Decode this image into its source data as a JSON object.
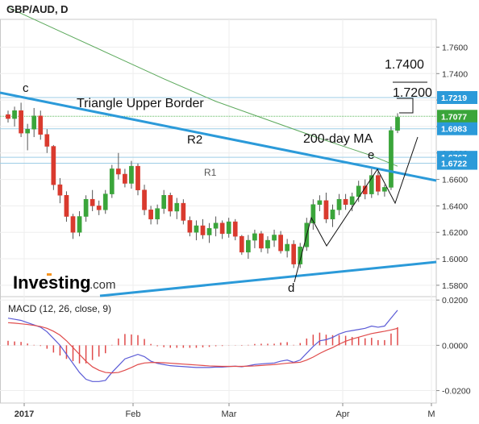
{
  "header": {
    "title": "GBP/AUD, D"
  },
  "brand": {
    "name": "Investing",
    "suffix": ".com",
    "color": "#000000",
    "dot_color": "#f7931e"
  },
  "colors": {
    "up": "#3aa53a",
    "down": "#d93a2e",
    "ma": "#5aa85a",
    "trend": "#2b9ad9",
    "hline": "#9ecde6",
    "hline_green": "#5cb85c",
    "macd": "#5b5bd6",
    "signal": "#e04b4b",
    "hist": "#e04b4b",
    "label_bg": "#2b9ad9",
    "label_bg_green": "#3aa53a"
  },
  "chart_data": [
    {
      "type": "candlestick",
      "title": "GBP/AUD, D",
      "x_tick_labels": [
        "2017",
        "Feb",
        "Mar",
        "Apr",
        "M"
      ],
      "y_tick_labels": [
        "1.7600",
        "1.7400",
        "1.7200",
        "1.7000",
        "1.6800",
        "1.6600",
        "1.6400",
        "1.6200",
        "1.6000",
        "1.5800"
      ],
      "ylim": [
        1.572,
        1.781
      ],
      "price_labels": [
        "1.7219",
        "1.7077",
        "1.6983",
        "1.6767",
        "1.6722"
      ],
      "price_levels": [
        1.7219,
        1.7077,
        1.6983,
        1.6767,
        1.6722
      ],
      "annotations": [
        "c",
        "Triangle Upper Border",
        "R2",
        "200-day MA",
        "R1",
        "e",
        "d",
        "1.7400",
        "1.7200"
      ],
      "series": [
        {
          "name": "Candles",
          "ohlc": [
            [
              1.709,
              1.712,
              1.703,
              1.706
            ],
            [
              1.706,
              1.715,
              1.7,
              1.712
            ],
            [
              1.712,
              1.718,
              1.692,
              1.695
            ],
            [
              1.695,
              1.702,
              1.682,
              1.698
            ],
            [
              1.698,
              1.714,
              1.692,
              1.708
            ],
            [
              1.708,
              1.712,
              1.69,
              1.694
            ],
            [
              1.694,
              1.698,
              1.68,
              1.685
            ],
            [
              1.685,
              1.686,
              1.652,
              1.656
            ],
            [
              1.656,
              1.661,
              1.642,
              1.648
            ],
            [
              1.648,
              1.651,
              1.628,
              1.632
            ],
            [
              1.632,
              1.634,
              1.615,
              1.62
            ],
            [
              1.62,
              1.636,
              1.617,
              1.632
            ],
            [
              1.632,
              1.648,
              1.628,
              1.645
            ],
            [
              1.645,
              1.652,
              1.636,
              1.64
            ],
            [
              1.64,
              1.644,
              1.633,
              1.637
            ],
            [
              1.637,
              1.652,
              1.634,
              1.649
            ],
            [
              1.649,
              1.671,
              1.646,
              1.668
            ],
            [
              1.668,
              1.68,
              1.66,
              1.664
            ],
            [
              1.664,
              1.668,
              1.654,
              1.657
            ],
            [
              1.657,
              1.674,
              1.653,
              1.67
            ],
            [
              1.67,
              1.672,
              1.648,
              1.652
            ],
            [
              1.652,
              1.656,
              1.633,
              1.637
            ],
            [
              1.637,
              1.64,
              1.626,
              1.63
            ],
            [
              1.63,
              1.641,
              1.626,
              1.638
            ],
            [
              1.638,
              1.652,
              1.634,
              1.648
            ],
            [
              1.648,
              1.65,
              1.632,
              1.636
            ],
            [
              1.636,
              1.646,
              1.63,
              1.642
            ],
            [
              1.642,
              1.645,
              1.626,
              1.629
            ],
            [
              1.629,
              1.632,
              1.617,
              1.62
            ],
            [
              1.62,
              1.629,
              1.614,
              1.625
            ],
            [
              1.625,
              1.63,
              1.615,
              1.618
            ],
            [
              1.618,
              1.627,
              1.612,
              1.623
            ],
            [
              1.623,
              1.632,
              1.617,
              1.627
            ],
            [
              1.627,
              1.629,
              1.615,
              1.619
            ],
            [
              1.619,
              1.631,
              1.616,
              1.628
            ],
            [
              1.628,
              1.63,
              1.614,
              1.617
            ],
            [
              1.617,
              1.618,
              1.603,
              1.605
            ],
            [
              1.605,
              1.618,
              1.6,
              1.614
            ],
            [
              1.614,
              1.622,
              1.608,
              1.619
            ],
            [
              1.619,
              1.621,
              1.605,
              1.608
            ],
            [
              1.608,
              1.617,
              1.604,
              1.614
            ],
            [
              1.614,
              1.622,
              1.609,
              1.618
            ],
            [
              1.618,
              1.621,
              1.604,
              1.606
            ],
            [
              1.606,
              1.615,
              1.601,
              1.611
            ],
            [
              1.611,
              1.614,
              1.593,
              1.596
            ],
            [
              1.596,
              1.612,
              1.593,
              1.609
            ],
            [
              1.609,
              1.631,
              1.606,
              1.627
            ],
            [
              1.627,
              1.645,
              1.622,
              1.641
            ],
            [
              1.641,
              1.648,
              1.636,
              1.644
            ],
            [
              1.644,
              1.65,
              1.627,
              1.63
            ],
            [
              1.63,
              1.641,
              1.624,
              1.637
            ],
            [
              1.637,
              1.649,
              1.633,
              1.645
            ],
            [
              1.645,
              1.649,
              1.637,
              1.641
            ],
            [
              1.641,
              1.65,
              1.636,
              1.647
            ],
            [
              1.647,
              1.659,
              1.643,
              1.655
            ],
            [
              1.655,
              1.66,
              1.645,
              1.649
            ],
            [
              1.649,
              1.668,
              1.646,
              1.663
            ],
            [
              1.663,
              1.666,
              1.648,
              1.651
            ],
            [
              1.651,
              1.656,
              1.647,
              1.654
            ],
            [
              1.654,
              1.7,
              1.652,
              1.697
            ],
            [
              1.697,
              1.71,
              1.695,
              1.707
            ]
          ]
        },
        {
          "name": "200-day MA",
          "x": [
            0,
            8,
            16,
            24,
            32,
            40,
            48,
            56,
            60
          ],
          "y": [
            1.79,
            1.772,
            1.754,
            1.736,
            1.719,
            1.705,
            1.691,
            1.678,
            1.67
          ]
        }
      ],
      "macd": {
        "title": "MACD (12, 26, close, 9)",
        "y_tick_labels": [
          "0.0200",
          "0.0000",
          "-0.0200"
        ],
        "ylim": [
          -0.0255,
          0.0215
        ],
        "macd_line": [
          0.012,
          0.0115,
          0.011,
          0.01,
          0.009,
          0.008,
          0.006,
          0.003,
          0.0,
          -0.004,
          -0.008,
          -0.012,
          -0.015,
          -0.016,
          -0.016,
          -0.0155,
          -0.012,
          -0.009,
          -0.006,
          -0.005,
          -0.004,
          -0.005,
          -0.007,
          -0.008,
          -0.0085,
          -0.009,
          -0.0092,
          -0.0094,
          -0.0096,
          -0.0098,
          -0.0098,
          -0.0098,
          -0.0096,
          -0.0096,
          -0.0094,
          -0.0092,
          -0.0095,
          -0.009,
          -0.0085,
          -0.0082,
          -0.008,
          -0.0078,
          -0.007,
          -0.0065,
          -0.0075,
          -0.0065,
          -0.0035,
          -0.0005,
          0.002,
          0.0025,
          0.0035,
          0.005,
          0.006,
          0.0065,
          0.007,
          0.0075,
          0.0085,
          0.008,
          0.0085,
          0.012,
          0.0155
        ],
        "signal_line": [
          0.01,
          0.0098,
          0.0095,
          0.0092,
          0.0088,
          0.0083,
          0.0075,
          0.0062,
          0.0045,
          0.002,
          -0.001,
          -0.004,
          -0.007,
          -0.0095,
          -0.011,
          -0.012,
          -0.0122,
          -0.012,
          -0.011,
          -0.0098,
          -0.0085,
          -0.0078,
          -0.0076,
          -0.0076,
          -0.0077,
          -0.0079,
          -0.0081,
          -0.0083,
          -0.0085,
          -0.0087,
          -0.0089,
          -0.0091,
          -0.0092,
          -0.0093,
          -0.0093,
          -0.0093,
          -0.0093,
          -0.0092,
          -0.0091,
          -0.0089,
          -0.0087,
          -0.0085,
          -0.0082,
          -0.0079,
          -0.0077,
          -0.0075,
          -0.0065,
          -0.0052,
          -0.0036,
          -0.0022,
          -0.001,
          0.0005,
          0.0018,
          0.0028,
          0.0036,
          0.0044,
          0.0052,
          0.0057,
          0.0062,
          0.0068,
          0.0075
        ],
        "histogram": [
          0.002,
          0.0017,
          0.0015,
          0.0008,
          0.0002,
          -0.0003,
          -0.0015,
          -0.0032,
          -0.0045,
          -0.006,
          -0.007,
          -0.008,
          -0.008,
          -0.0065,
          -0.005,
          -0.0035,
          0.0002,
          0.003,
          0.005,
          0.0048,
          0.0045,
          0.0028,
          0.0006,
          -0.0004,
          -0.0008,
          -0.0011,
          -0.0011,
          -0.0011,
          -0.0011,
          -0.0011,
          -0.0009,
          -0.0007,
          -0.0004,
          -0.0003,
          -0.0001,
          0.0001,
          -0.0002,
          0.0002,
          0.0006,
          0.0007,
          0.0007,
          0.0007,
          0.0012,
          0.0014,
          0.0002,
          0.001,
          0.003,
          0.0047,
          0.0056,
          0.0047,
          0.0045,
          0.0045,
          0.0042,
          0.0037,
          0.0034,
          0.0031,
          0.0033,
          0.0023,
          0.0023,
          0.0052,
          0.008
        ]
      }
    }
  ]
}
